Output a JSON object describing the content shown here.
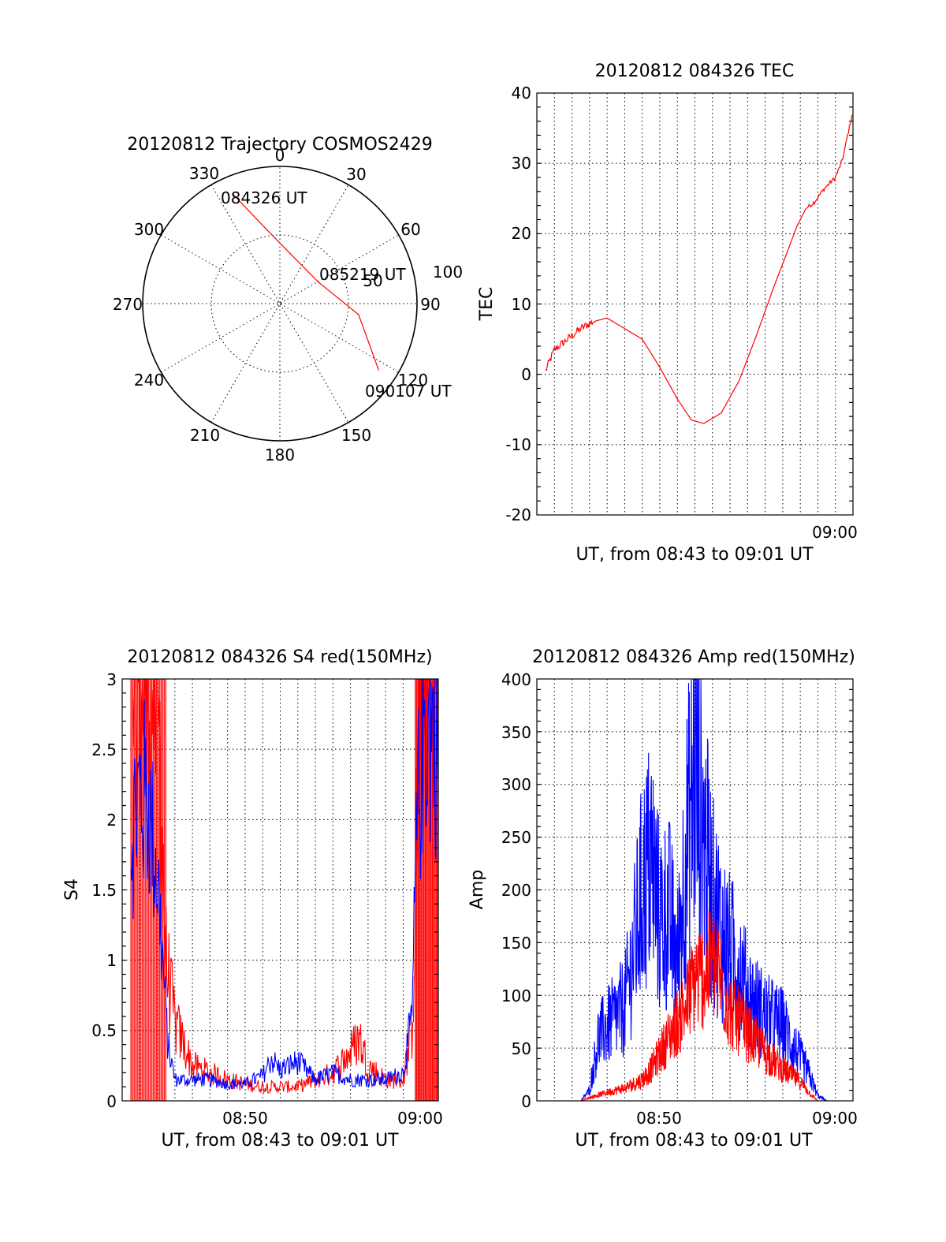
{
  "charts": {
    "polar": {
      "title": "20120812 Trajectory COSMOS2429",
      "angle_labels": [
        "0",
        "30",
        "60",
        "90",
        "120",
        "150",
        "180",
        "210",
        "240",
        "270",
        "300",
        "330"
      ],
      "ring_labels": [
        "50",
        "100"
      ],
      "start_label": "084326 UT",
      "mid_label": "085219 UT",
      "end_label": "090107 UT"
    },
    "tec": {
      "title": "20120812 084326 TEC",
      "ylabel": "TEC",
      "xlabel": "UT, from 08:43 to 09:01 UT",
      "xtick": "09:00",
      "yticks": [
        "40",
        "30",
        "20",
        "10",
        "0",
        "-10",
        "-20"
      ]
    },
    "s4": {
      "title": "20120812 084326 S4 red(150MHz)",
      "ylabel": "S4",
      "xlabel": "UT, from 08:43 to 09:01 UT",
      "xticks": [
        "08:50",
        "09:00"
      ],
      "yticks": [
        "3",
        "2.5",
        "2",
        "1.5",
        "1",
        "0.5",
        "0"
      ]
    },
    "amp": {
      "title": "20120812 084326 Amp red(150MHz)",
      "ylabel": "Amp",
      "xlabel": "UT, from 08:43 to 09:01 UT",
      "xticks": [
        "08:50",
        "09:00"
      ],
      "yticks": [
        "400",
        "350",
        "300",
        "250",
        "200",
        "150",
        "100",
        "50",
        "0"
      ]
    }
  },
  "chart_data": [
    {
      "type": "polar-trajectory",
      "title": "20120812 Trajectory COSMOS2429",
      "radius_max": 100,
      "angle_ticks": [
        0,
        30,
        60,
        90,
        120,
        150,
        180,
        210,
        240,
        270,
        300,
        330
      ],
      "points": [
        {
          "time": "084326 UT",
          "azimuth": 337,
          "zenith": 86
        },
        {
          "azimuth": 352,
          "zenith": 52
        },
        {
          "azimuth": 60,
          "zenith": 32
        },
        {
          "time": "085219 UT",
          "azimuth": 98,
          "zenith": 58
        },
        {
          "time": "090107 UT",
          "azimuth": 124,
          "zenith": 87
        }
      ],
      "series_color": "#ff0000"
    },
    {
      "type": "line",
      "title": "20120812 084326 TEC",
      "xlabel": "UT, from 08:43 to 09:01 UT",
      "ylabel": "TEC",
      "xlim": [
        "08:43",
        "09:01"
      ],
      "ylim": [
        -20,
        40
      ],
      "xticks": [
        "09:00"
      ],
      "grid": true,
      "series": [
        {
          "color": "#ff0000",
          "x_min": [
            0.5,
            1.0,
            1.5,
            2.5,
            3.2,
            4.0,
            5.0,
            6.0,
            7.0,
            8.0,
            8.8,
            9.5,
            10.5,
            11.5,
            12.5,
            13.5,
            14.2,
            14.8,
            15.3,
            15.8,
            16.4,
            17.0,
            17.4,
            17.7,
            18.0
          ],
          "values": [
            0.5,
            3.5,
            4.5,
            6.5,
            7.5,
            8.0,
            6.5,
            5.0,
            1.0,
            -3.5,
            -6.5,
            -7.0,
            -5.5,
            -1.0,
            5.5,
            12.5,
            17.0,
            21.0,
            23.5,
            24.5,
            26.5,
            28.0,
            30.5,
            34.0,
            37.5
          ]
        }
      ]
    },
    {
      "type": "line",
      "title": "20120812 084326 S4 red(150MHz)",
      "xlabel": "UT, from 08:43 to 09:01 UT",
      "ylabel": "S4",
      "xlim": [
        "08:43",
        "09:01"
      ],
      "ylim": [
        0,
        3
      ],
      "xticks": [
        "08:50",
        "09:00"
      ],
      "grid": true,
      "series": [
        {
          "color": "#ff0000",
          "x_min": [
            0.5,
            1.0,
            1.5,
            2.0,
            2.5,
            3.0,
            4.0,
            5.0,
            6.0,
            7.0,
            8.0,
            9.0,
            10.0,
            11.0,
            12.0,
            13.0,
            13.5,
            14.0,
            15.0,
            16.0,
            16.5,
            17.0,
            17.5,
            18.0
          ],
          "values": [
            3.0,
            3.0,
            3.0,
            3.0,
            1.0,
            0.55,
            0.25,
            0.2,
            0.15,
            0.12,
            0.1,
            0.1,
            0.1,
            0.15,
            0.2,
            0.35,
            0.45,
            0.25,
            0.15,
            0.15,
            0.5,
            3.0,
            3.0,
            3.0
          ]
        },
        {
          "color": "#0000ff",
          "x_min": [
            0.5,
            1.0,
            1.5,
            2.0,
            2.3,
            2.6,
            3.0,
            4.0,
            5.0,
            6.0,
            7.0,
            8.0,
            8.5,
            9.0,
            10.0,
            11.0,
            12.0,
            13.0,
            14.0,
            15.0,
            16.0,
            16.5,
            16.8,
            17.2,
            18.0
          ],
          "values": [
            1.9,
            2.2,
            2.1,
            1.6,
            1.0,
            0.4,
            0.15,
            0.15,
            0.15,
            0.12,
            0.12,
            0.18,
            0.3,
            0.22,
            0.28,
            0.15,
            0.2,
            0.15,
            0.15,
            0.15,
            0.2,
            0.6,
            2.0,
            2.7,
            2.6
          ]
        }
      ]
    },
    {
      "type": "line",
      "title": "20120812 084326 Amp red(150MHz)",
      "xlabel": "UT, from 08:43 to 09:01 UT",
      "ylabel": "Amp",
      "xlim": [
        "08:43",
        "09:01"
      ],
      "ylim": [
        0,
        400
      ],
      "xticks": [
        "08:50",
        "09:00"
      ],
      "grid": true,
      "series": [
        {
          "color": "#ff0000",
          "x_min": [
            0.5,
            2.5,
            3.0,
            4.0,
            5.0,
            6.0,
            6.5,
            7.0,
            7.5,
            8.0,
            8.5,
            9.0,
            9.5,
            10.0,
            10.5,
            11.0,
            12.0,
            13.0,
            14.0,
            15.0,
            15.5,
            16.0,
            17.0,
            18.0
          ],
          "values": [
            0,
            0,
            3,
            8,
            12,
            20,
            30,
            45,
            60,
            75,
            90,
            115,
            120,
            130,
            115,
            85,
            65,
            45,
            30,
            18,
            8,
            0,
            0,
            0
          ]
        },
        {
          "color": "#0000ff",
          "x_min": [
            0.5,
            2.5,
            3.0,
            3.5,
            4.0,
            4.5,
            5.0,
            5.5,
            6.0,
            6.5,
            7.0,
            7.5,
            8.0,
            8.5,
            9.0,
            9.5,
            10.0,
            10.5,
            11.0,
            11.5,
            12.0,
            12.5,
            13.0,
            13.5,
            14.0,
            14.5,
            15.0,
            15.5,
            16.0,
            16.5,
            18.0
          ],
          "values": [
            0,
            0,
            10,
            60,
            70,
            80,
            90,
            140,
            200,
            230,
            170,
            180,
            130,
            240,
            310,
            250,
            190,
            160,
            140,
            130,
            100,
            90,
            80,
            75,
            70,
            55,
            40,
            25,
            5,
            0,
            0
          ]
        }
      ]
    }
  ]
}
